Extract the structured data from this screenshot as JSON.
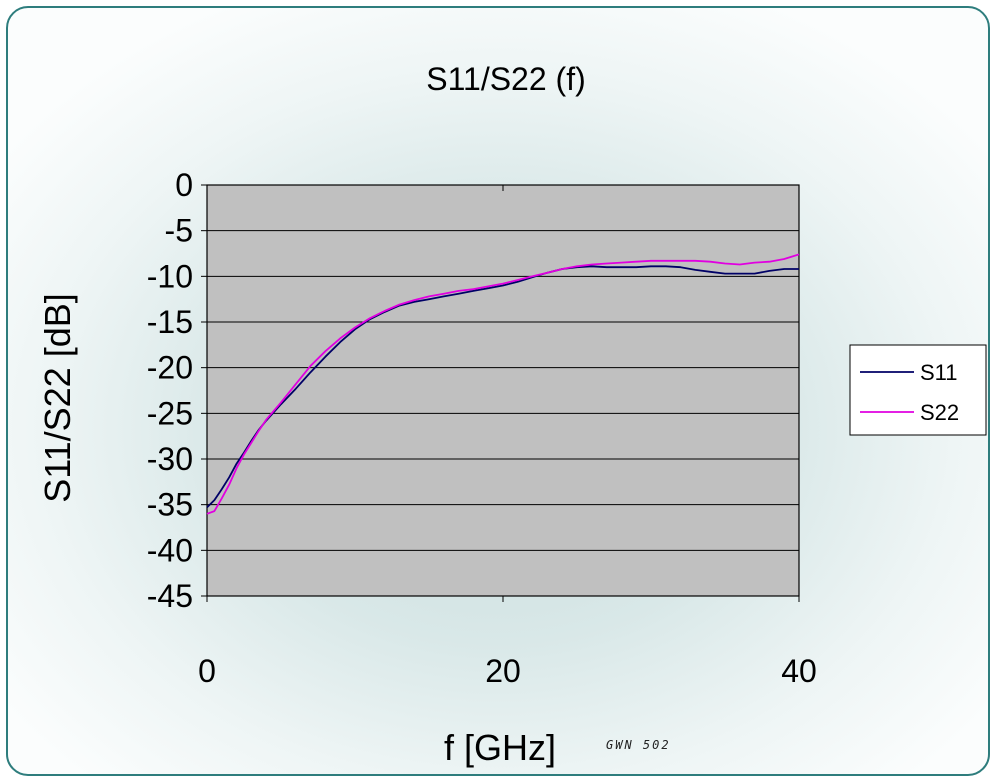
{
  "chart_data": {
    "type": "line",
    "title": "S11/S22 (f)",
    "xlabel": "f [GHz]",
    "ylabel": "S11/S22 [dB]",
    "xlim": [
      0,
      40
    ],
    "ylim": [
      -45,
      0
    ],
    "x_ticks": [
      0,
      20,
      40
    ],
    "y_ticks": [
      0,
      -5,
      -10,
      -15,
      -20,
      -25,
      -30,
      -35,
      -40,
      -45
    ],
    "grid": "horizontal",
    "plot_background": "#c0c0c0",
    "legend_position": "right",
    "series": [
      {
        "name": "S11",
        "color": "#000066",
        "x": [
          0,
          0.5,
          1,
          1.5,
          2,
          2.5,
          3,
          3.5,
          4,
          5,
          6,
          7,
          8,
          9,
          10,
          11,
          12,
          13,
          14,
          15,
          16,
          17,
          18,
          19,
          20,
          21,
          22,
          23,
          24,
          25,
          26,
          27,
          28,
          29,
          30,
          31,
          32,
          33,
          34,
          35,
          36,
          37,
          38,
          39,
          40
        ],
        "values": [
          -35.3,
          -34.5,
          -33.3,
          -32.0,
          -30.5,
          -29.3,
          -28.0,
          -26.8,
          -25.8,
          -24.0,
          -22.3,
          -20.5,
          -18.8,
          -17.2,
          -15.8,
          -14.7,
          -13.9,
          -13.2,
          -12.8,
          -12.5,
          -12.2,
          -11.9,
          -11.6,
          -11.3,
          -11.0,
          -10.6,
          -10.1,
          -9.6,
          -9.2,
          -9.0,
          -8.9,
          -9.0,
          -9.0,
          -9.0,
          -8.9,
          -8.9,
          -9.0,
          -9.3,
          -9.5,
          -9.7,
          -9.7,
          -9.7,
          -9.4,
          -9.2,
          -9.2
        ]
      },
      {
        "name": "S22",
        "color": "#e000e0",
        "x": [
          0,
          0.5,
          1,
          1.5,
          2,
          2.5,
          3,
          3.5,
          4,
          5,
          6,
          7,
          8,
          9,
          10,
          11,
          12,
          13,
          14,
          15,
          16,
          17,
          18,
          19,
          20,
          21,
          22,
          23,
          24,
          25,
          26,
          27,
          28,
          29,
          30,
          31,
          32,
          33,
          34,
          35,
          36,
          37,
          38,
          39,
          40
        ],
        "values": [
          -36.0,
          -35.7,
          -34.3,
          -32.8,
          -31.0,
          -29.5,
          -28.2,
          -26.9,
          -25.7,
          -23.8,
          -21.8,
          -19.8,
          -18.2,
          -16.8,
          -15.6,
          -14.6,
          -13.8,
          -13.1,
          -12.6,
          -12.2,
          -11.9,
          -11.6,
          -11.4,
          -11.1,
          -10.8,
          -10.4,
          -10.0,
          -9.6,
          -9.2,
          -8.9,
          -8.7,
          -8.6,
          -8.5,
          -8.4,
          -8.3,
          -8.3,
          -8.3,
          -8.3,
          -8.4,
          -8.6,
          -8.7,
          -8.5,
          -8.4,
          -8.1,
          -7.6
        ]
      }
    ]
  },
  "watermark": "GWN 502"
}
